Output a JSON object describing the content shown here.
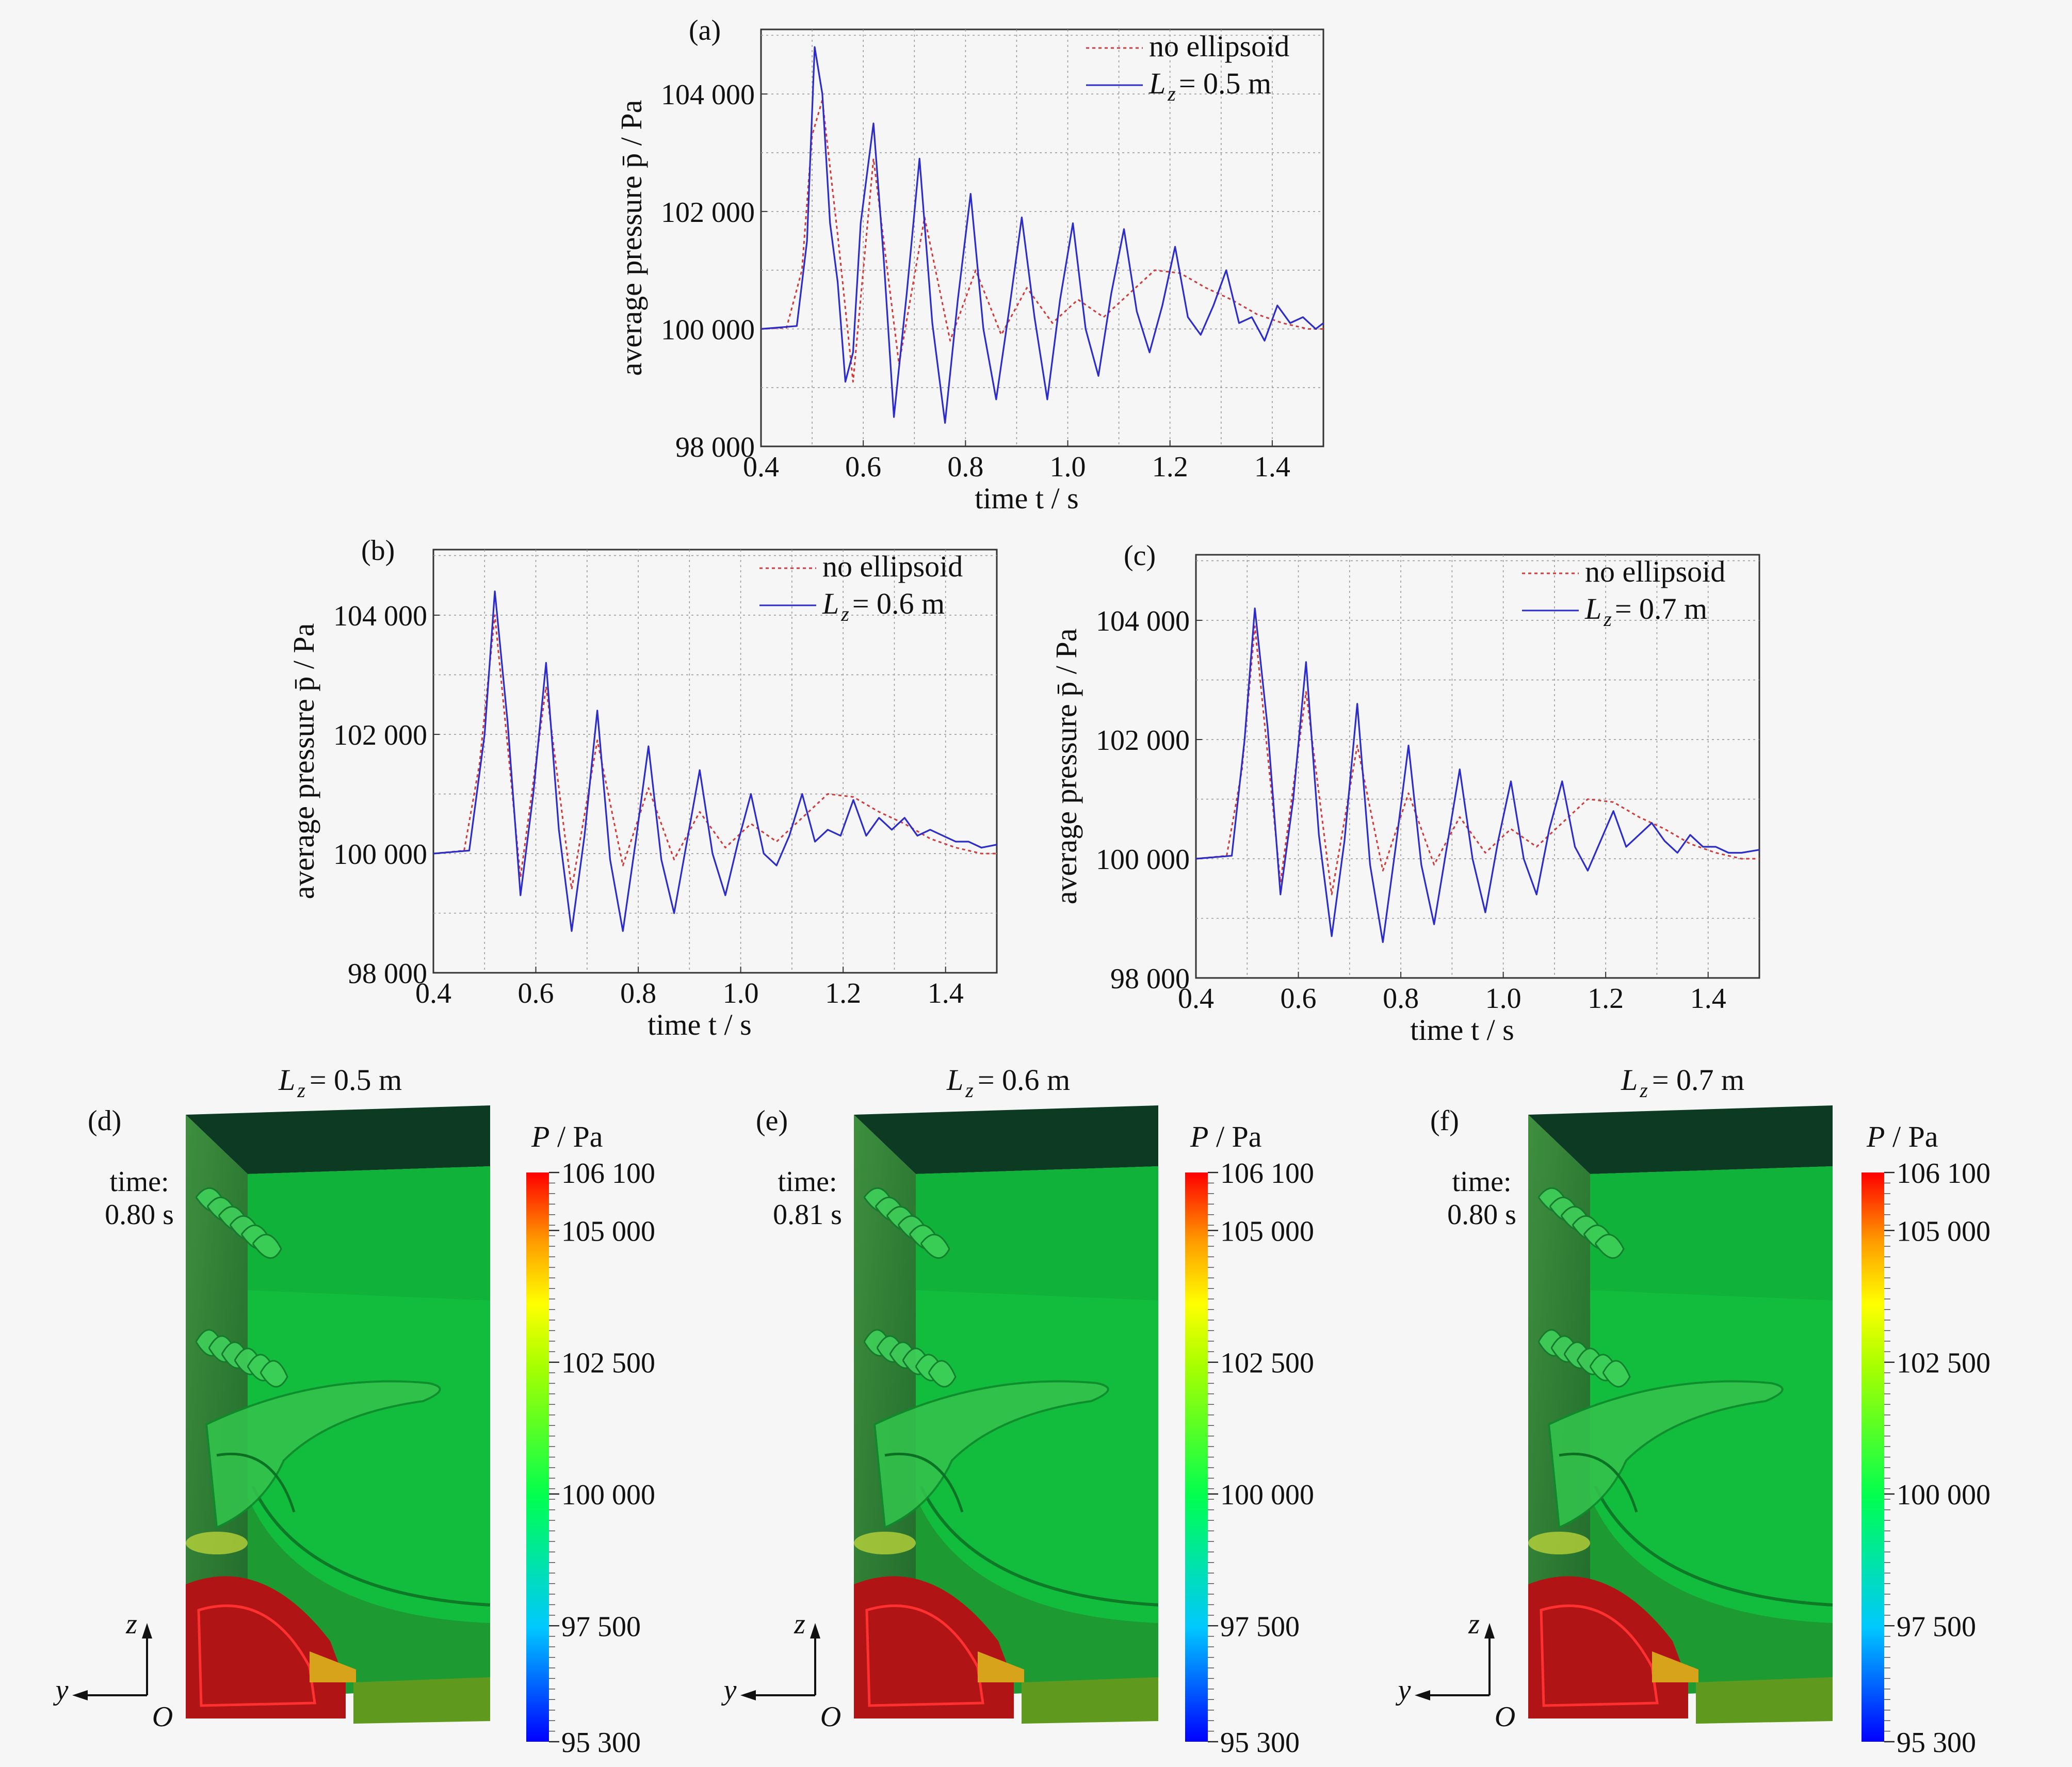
{
  "colors": {
    "no_ellipsoid": "#d23a3a",
    "with_ellipsoid": "#2c2ccc",
    "grid": "#9a9a9a",
    "panel_background": "#f6f6f6"
  },
  "chart_data": [
    {
      "panel_label": "(a)",
      "type": "line",
      "xlabel": "time t / s",
      "ylabel": "average pressure p̄ / Pa",
      "xlim": [
        0.4,
        1.5
      ],
      "ylim": [
        98000,
        105100
      ],
      "x_ticks": [
        0.4,
        0.6,
        0.8,
        1.0,
        1.2,
        1.4
      ],
      "x_tick_labels": [
        "0.4",
        "0.6",
        "0.8",
        "1.0",
        "1.2",
        "1.4"
      ],
      "y_ticks": [
        98000,
        100000,
        102000,
        104000
      ],
      "y_tick_labels": [
        "98 000",
        "100 000",
        "102 000",
        "104 000"
      ],
      "grid": true,
      "legend_position": "top-right",
      "series": [
        {
          "name": "no ellipsoid",
          "style": "dotted",
          "x": [
            0.4,
            0.45,
            0.48,
            0.5,
            0.52,
            0.55,
            0.58,
            0.62,
            0.67,
            0.72,
            0.77,
            0.82,
            0.87,
            0.92,
            0.97,
            1.02,
            1.07,
            1.12,
            1.17,
            1.22,
            1.27,
            1.32,
            1.37,
            1.42,
            1.47,
            1.5
          ],
          "y": [
            100000,
            100020,
            101000,
            103300,
            103900,
            101600,
            99100,
            102900,
            99400,
            101900,
            99800,
            101000,
            99900,
            100700,
            100100,
            100500,
            100200,
            100600,
            101000,
            100950,
            100700,
            100500,
            100250,
            100100,
            100000,
            100000
          ]
        },
        {
          "name": "L z = 0.5 m",
          "style": "solid",
          "x": [
            0.4,
            0.47,
            0.49,
            0.505,
            0.52,
            0.535,
            0.55,
            0.565,
            0.58,
            0.595,
            0.62,
            0.64,
            0.66,
            0.685,
            0.71,
            0.735,
            0.76,
            0.785,
            0.81,
            0.835,
            0.86,
            0.885,
            0.91,
            0.935,
            0.96,
            0.985,
            1.01,
            1.035,
            1.06,
            1.085,
            1.11,
            1.135,
            1.16,
            1.185,
            1.21,
            1.235,
            1.26,
            1.285,
            1.31,
            1.335,
            1.36,
            1.385,
            1.41,
            1.435,
            1.46,
            1.485,
            1.5
          ],
          "y": [
            100000,
            100050,
            101500,
            104800,
            104000,
            101800,
            100800,
            99100,
            99600,
            101800,
            103500,
            101200,
            98500,
            100600,
            102900,
            100100,
            98400,
            100500,
            102300,
            100000,
            98800,
            100300,
            101900,
            100200,
            98800,
            100500,
            101800,
            100000,
            99200,
            100600,
            101700,
            100300,
            99600,
            100400,
            101400,
            100200,
            99900,
            100400,
            101000,
            100100,
            100200,
            99800,
            100400,
            100100,
            100200,
            100000,
            100100
          ]
        }
      ]
    },
    {
      "panel_label": "(b)",
      "type": "line",
      "xlabel": "time t / s",
      "ylabel": "average pressure p̄ / Pa",
      "xlim": [
        0.4,
        1.5
      ],
      "ylim": [
        98000,
        105100
      ],
      "x_ticks": [
        0.4,
        0.6,
        0.8,
        1.0,
        1.2,
        1.4
      ],
      "x_tick_labels": [
        "0.4",
        "0.6",
        "0.8",
        "1.0",
        "1.2",
        "1.4"
      ],
      "y_ticks": [
        98000,
        100000,
        102000,
        104000
      ],
      "y_tick_labels": [
        "98 000",
        "100 000",
        "102 000",
        "104 000"
      ],
      "grid": true,
      "legend_position": "top-right",
      "series": [
        {
          "name": "no ellipsoid",
          "style": "dotted",
          "x": [
            0.4,
            0.46,
            0.49,
            0.52,
            0.57,
            0.62,
            0.67,
            0.72,
            0.77,
            0.82,
            0.87,
            0.92,
            0.97,
            1.02,
            1.07,
            1.12,
            1.17,
            1.22,
            1.27,
            1.32,
            1.37,
            1.42,
            1.47,
            1.5
          ],
          "y": [
            100000,
            100050,
            101500,
            104000,
            99600,
            102800,
            99400,
            101900,
            99800,
            101100,
            99900,
            100700,
            100100,
            100500,
            100200,
            100600,
            101000,
            100950,
            100700,
            100500,
            100250,
            100100,
            100000,
            100000
          ]
        },
        {
          "name": "L z = 0.6 m",
          "style": "solid",
          "x": [
            0.4,
            0.47,
            0.5,
            0.52,
            0.545,
            0.57,
            0.595,
            0.62,
            0.645,
            0.67,
            0.695,
            0.72,
            0.745,
            0.77,
            0.795,
            0.82,
            0.845,
            0.87,
            0.895,
            0.92,
            0.945,
            0.97,
            0.995,
            1.02,
            1.045,
            1.07,
            1.095,
            1.12,
            1.145,
            1.17,
            1.195,
            1.22,
            1.245,
            1.27,
            1.295,
            1.32,
            1.345,
            1.37,
            1.395,
            1.42,
            1.445,
            1.47,
            1.5
          ],
          "y": [
            100000,
            100050,
            102000,
            104400,
            102200,
            99300,
            101000,
            103200,
            100400,
            98700,
            100300,
            102400,
            99900,
            98700,
            100200,
            101800,
            99900,
            99000,
            100200,
            101400,
            100000,
            99300,
            100200,
            101000,
            100000,
            99800,
            100300,
            101000,
            100200,
            100400,
            100300,
            100900,
            100300,
            100600,
            100400,
            100600,
            100300,
            100400,
            100300,
            100200,
            100200,
            100100,
            100150
          ]
        }
      ]
    },
    {
      "panel_label": "(c)",
      "type": "line",
      "xlabel": "time t / s",
      "ylabel": "average pressure p̄ / Pa",
      "xlim": [
        0.4,
        1.5
      ],
      "ylim": [
        98000,
        105100
      ],
      "x_ticks": [
        0.4,
        0.6,
        0.8,
        1.0,
        1.2,
        1.4
      ],
      "x_tick_labels": [
        "0.4",
        "0.6",
        "0.8",
        "1.0",
        "1.2",
        "1.4"
      ],
      "y_ticks": [
        98000,
        100000,
        102000,
        104000
      ],
      "y_tick_labels": [
        "98 000",
        "100 000",
        "102 000",
        "104 000"
      ],
      "grid": true,
      "legend_position": "top-right",
      "series": [
        {
          "name": "no ellipsoid",
          "style": "dotted",
          "x": [
            0.4,
            0.46,
            0.49,
            0.515,
            0.565,
            0.615,
            0.665,
            0.715,
            0.765,
            0.815,
            0.865,
            0.915,
            0.965,
            1.015,
            1.065,
            1.115,
            1.165,
            1.215,
            1.265,
            1.315,
            1.365,
            1.415,
            1.465,
            1.5
          ],
          "y": [
            100000,
            100050,
            101500,
            103900,
            99600,
            102800,
            99400,
            101900,
            99800,
            101100,
            99900,
            100700,
            100100,
            100500,
            100200,
            100600,
            101000,
            100950,
            100700,
            100500,
            100250,
            100100,
            100000,
            100000
          ]
        },
        {
          "name": "L z = 0.7 m",
          "style": "solid",
          "x": [
            0.4,
            0.47,
            0.495,
            0.515,
            0.54,
            0.565,
            0.59,
            0.615,
            0.64,
            0.665,
            0.69,
            0.715,
            0.74,
            0.765,
            0.79,
            0.815,
            0.84,
            0.865,
            0.89,
            0.915,
            0.94,
            0.965,
            0.99,
            1.015,
            1.04,
            1.065,
            1.09,
            1.115,
            1.14,
            1.165,
            1.19,
            1.215,
            1.24,
            1.265,
            1.29,
            1.315,
            1.34,
            1.365,
            1.39,
            1.415,
            1.44,
            1.465,
            1.5
          ],
          "y": [
            100000,
            100050,
            102000,
            104200,
            102200,
            99400,
            101000,
            103300,
            100400,
            98700,
            100300,
            102600,
            99900,
            98600,
            100200,
            101900,
            99900,
            98900,
            100200,
            101500,
            100000,
            99100,
            100300,
            101300,
            100000,
            99400,
            100500,
            101300,
            100200,
            99800,
            100300,
            100800,
            100200,
            100400,
            100600,
            100300,
            100100,
            100400,
            100200,
            100200,
            100100,
            100100,
            100150
          ]
        }
      ]
    }
  ],
  "simulation_panels": [
    {
      "label": "(d)",
      "title_L": "L",
      "title_sub": "z",
      "title_value": "= 0.5 m",
      "time_label": "time:",
      "time_value": "0.80 s",
      "axis_z": "z",
      "axis_y": "y",
      "axis_origin": "O"
    },
    {
      "label": "(e)",
      "title_L": "L",
      "title_sub": "z",
      "title_value": "= 0.6 m",
      "time_label": "time:",
      "time_value": "0.81 s",
      "axis_z": "z",
      "axis_y": "y",
      "axis_origin": "O"
    },
    {
      "label": "(f)",
      "title_L": "L",
      "title_sub": "z",
      "title_value": "= 0.7 m",
      "time_label": "time:",
      "time_value": "0.80 s",
      "axis_z": "z",
      "axis_y": "y",
      "axis_origin": "O"
    }
  ],
  "colorbar": {
    "title": "P / Pa",
    "tick_labels": [
      "106 100",
      "105 000",
      "102 500",
      "100 000",
      "97 500",
      "95 300"
    ],
    "tick_values": [
      106100,
      105000,
      102500,
      100000,
      97500,
      95300
    ],
    "range": [
      95300,
      106100
    ]
  }
}
